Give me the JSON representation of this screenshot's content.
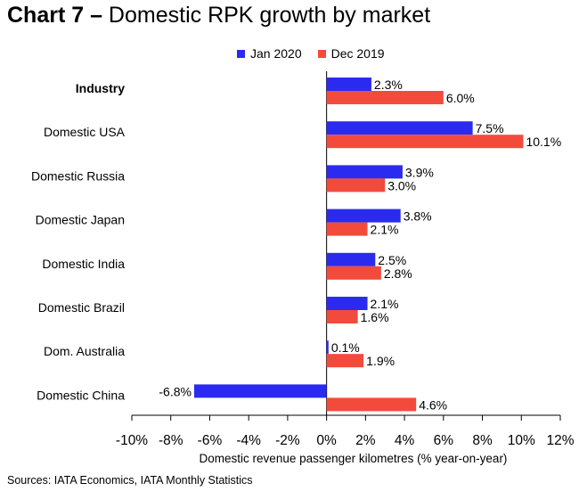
{
  "title_bold": "Chart 7 –",
  "title_rest": " Domestic RPK growth by market",
  "source": "Sources: IATA Economics, IATA Monthly Statistics",
  "colors": {
    "jan2020": "#2b2bef",
    "dec2019": "#f24b3c",
    "axis": "#000000"
  },
  "chart_data": {
    "type": "bar",
    "orientation": "horizontal",
    "title": "Domestic RPK growth by market",
    "xlabel": "Domestic revenue passenger kilometres (% year-on-year)",
    "ylabel": "",
    "xlim": [
      -10,
      12
    ],
    "xticks": [
      "-10%",
      "-8%",
      "-6%",
      "-4%",
      "-2%",
      "0%",
      "2%",
      "4%",
      "6%",
      "8%",
      "10%",
      "12%"
    ],
    "categories": [
      "Industry",
      "Domestic USA",
      "Domestic Russia",
      "Domestic Japan",
      "Domestic India",
      "Domestic Brazil",
      "Dom. Australia",
      "Domestic China"
    ],
    "series": [
      {
        "name": "Jan 2020",
        "values": [
          2.3,
          7.5,
          3.9,
          3.8,
          2.5,
          2.1,
          0.1,
          -6.8
        ],
        "labels": [
          "2.3%",
          "7.5%",
          "3.9%",
          "3.8%",
          "2.5%",
          "2.1%",
          "0.1%",
          "-6.8%"
        ]
      },
      {
        "name": "Dec 2019",
        "values": [
          6.0,
          10.1,
          3.0,
          2.1,
          2.8,
          1.6,
          1.9,
          4.6
        ],
        "labels": [
          "6.0%",
          "10.1%",
          "3.0%",
          "2.1%",
          "2.8%",
          "1.6%",
          "1.9%",
          "4.6%"
        ]
      }
    ],
    "legend_position": "top",
    "grid": false
  }
}
